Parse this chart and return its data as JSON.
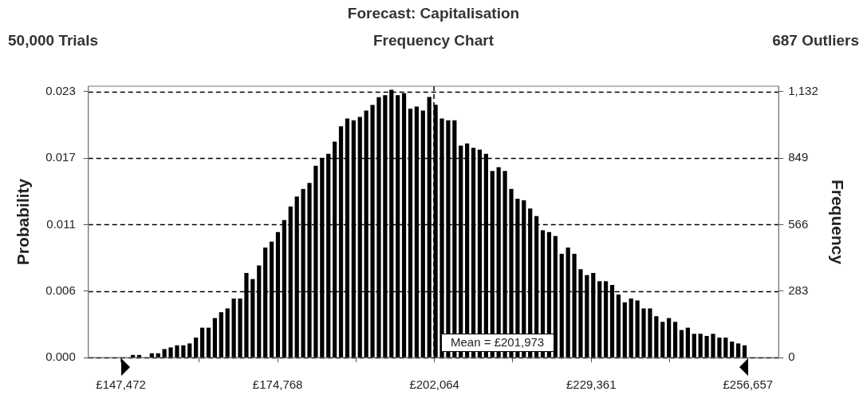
{
  "chart_data": {
    "type": "histogram",
    "title": "Forecast: Capitalisation",
    "subtitle": "Frequency Chart",
    "annotations": [
      "50,000 Trials",
      "687 Outliers"
    ],
    "ylabel": "Probability",
    "y2label": "Frequency",
    "bins": [
      149010,
      150108,
      151206,
      152304,
      153402,
      154500,
      155598,
      156696,
      157794,
      158892,
      159990,
      161088,
      162186,
      163284,
      164382,
      165480,
      166578,
      167676,
      168774,
      169872,
      170970,
      172068,
      173166,
      174264,
      175362,
      176460,
      177558,
      178656,
      179754,
      180852,
      181950,
      183048,
      184146,
      185244,
      186342,
      187440,
      188538,
      189636,
      190734,
      191832,
      192930,
      194028,
      195126,
      196224,
      197322,
      198420,
      199518,
      200616,
      201714,
      202812,
      203910,
      205008,
      206106,
      207204,
      208302,
      209400,
      210498,
      211596,
      212694,
      213792,
      214890,
      215988,
      217086,
      218184,
      219282,
      220380,
      221478,
      222576,
      223674,
      224772,
      225870,
      226968,
      228066,
      229164,
      230262,
      231360,
      232458,
      233556,
      234654,
      235752,
      236850,
      237948,
      239046,
      240144,
      241242,
      242340,
      243438,
      244536,
      245634,
      246732,
      247830,
      248928,
      250026,
      251124,
      252222,
      253320,
      254418,
      255516,
      256614
    ],
    "series": [
      {
        "color": "#000000",
        "axis": "y2",
        "values": [
          11,
          11,
          null,
          18,
          18,
          36,
          43,
          52,
          52,
          60,
          85,
          127,
          127,
          168,
          193,
          209,
          251,
          251,
          360,
          334,
          392,
          468,
          493,
          534,
          585,
          643,
          685,
          718,
          743,
          816,
          849,
          867,
          919,
          984,
          1017,
          1010,
          1024,
          1051,
          1075,
          1108,
          1117,
          1140,
          1117,
          1125,
          1059,
          1068,
          1051,
          1109,
          1076,
          1017,
          1010,
          1010,
          902,
          911,
          893,
          885,
          867,
          794,
          810,
          794,
          718,
          676,
          669,
          634,
          602,
          542,
          534,
          517,
          442,
          468,
          442,
          376,
          351,
          360,
          325,
          325,
          309,
          268,
          235,
          251,
          243,
          209,
          209,
          176,
          152,
          168,
          152,
          117,
          127,
          101,
          101,
          92,
          101,
          85,
          85,
          68,
          60,
          52
        ]
      }
    ],
    "xlim": [
      141800,
      262000
    ],
    "xticks": [
      {
        "value": 147472,
        "label": "£147,472"
      },
      {
        "value": 161120,
        "label": null
      },
      {
        "value": 174768,
        "label": "£174,768"
      },
      {
        "value": 188416,
        "label": null
      },
      {
        "value": 202064,
        "label": "£202,064"
      },
      {
        "value": 215712.5,
        "label": null
      },
      {
        "value": 229361,
        "label": "£229,361"
      },
      {
        "value": 243009,
        "label": null
      },
      {
        "value": 256657,
        "label": "£256,657"
      }
    ],
    "ylim": [
      0,
      0.0231
    ],
    "yticks": [
      {
        "value": 0,
        "label": "0.000"
      },
      {
        "value": 0.00566,
        "label": "0.006"
      },
      {
        "value": 0.01132,
        "label": "0.011"
      },
      {
        "value": 0.01698,
        "label": "0.017"
      },
      {
        "value": 0.02264,
        "label": "0.023"
      }
    ],
    "y2lim": [
      0,
      1155
    ],
    "y2ticks": [
      0,
      283,
      566,
      849,
      {
        "value": 1132,
        "label": "1,132"
      }
    ],
    "grid": "y",
    "ref_lines": [
      {
        "axis": "x",
        "value": 201973,
        "label": "Mean = £201,973",
        "line_style": "dashed",
        "color": "#000000"
      }
    ]
  }
}
